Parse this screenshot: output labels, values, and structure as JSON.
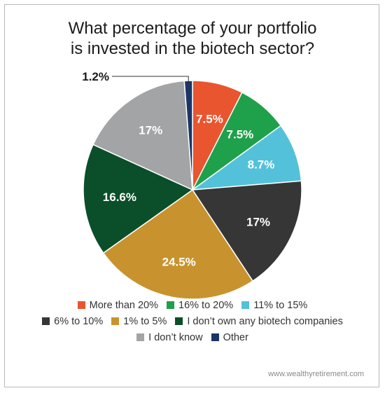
{
  "chart_data": {
    "type": "pie",
    "title_lines": [
      "What percentage of your portfolio",
      "is invested in the biotech sector?"
    ],
    "slices": [
      {
        "label": "More than 20%",
        "value": 7.5,
        "display": "7.5%",
        "color": "#e8552e"
      },
      {
        "label": "16% to 20%",
        "value": 7.5,
        "display": "7.5%",
        "color": "#1fa04a"
      },
      {
        "label": "11% to 15%",
        "value": 8.7,
        "display": "8.7%",
        "color": "#54c1da"
      },
      {
        "label": "6% to 10%",
        "value": 17,
        "display": "17%",
        "color": "#363636"
      },
      {
        "label": "1% to 5%",
        "value": 24.5,
        "display": "24.5%",
        "color": "#c8932e"
      },
      {
        "label": "I don’t own any biotech companies",
        "value": 16.6,
        "display": "16.6%",
        "color": "#0a4f2a"
      },
      {
        "label": "I don’t know",
        "value": 17,
        "display": "17%",
        "color": "#a3a4a6"
      },
      {
        "label": "Other",
        "value": 1.2,
        "display": "1.2%",
        "color": "#1b3566"
      }
    ],
    "legend_rows": [
      [
        0,
        1,
        2
      ],
      [
        3,
        4,
        5
      ],
      [
        6,
        7
      ]
    ],
    "legend_placement": "bottom"
  },
  "source": "www.wealthyretirement.com"
}
